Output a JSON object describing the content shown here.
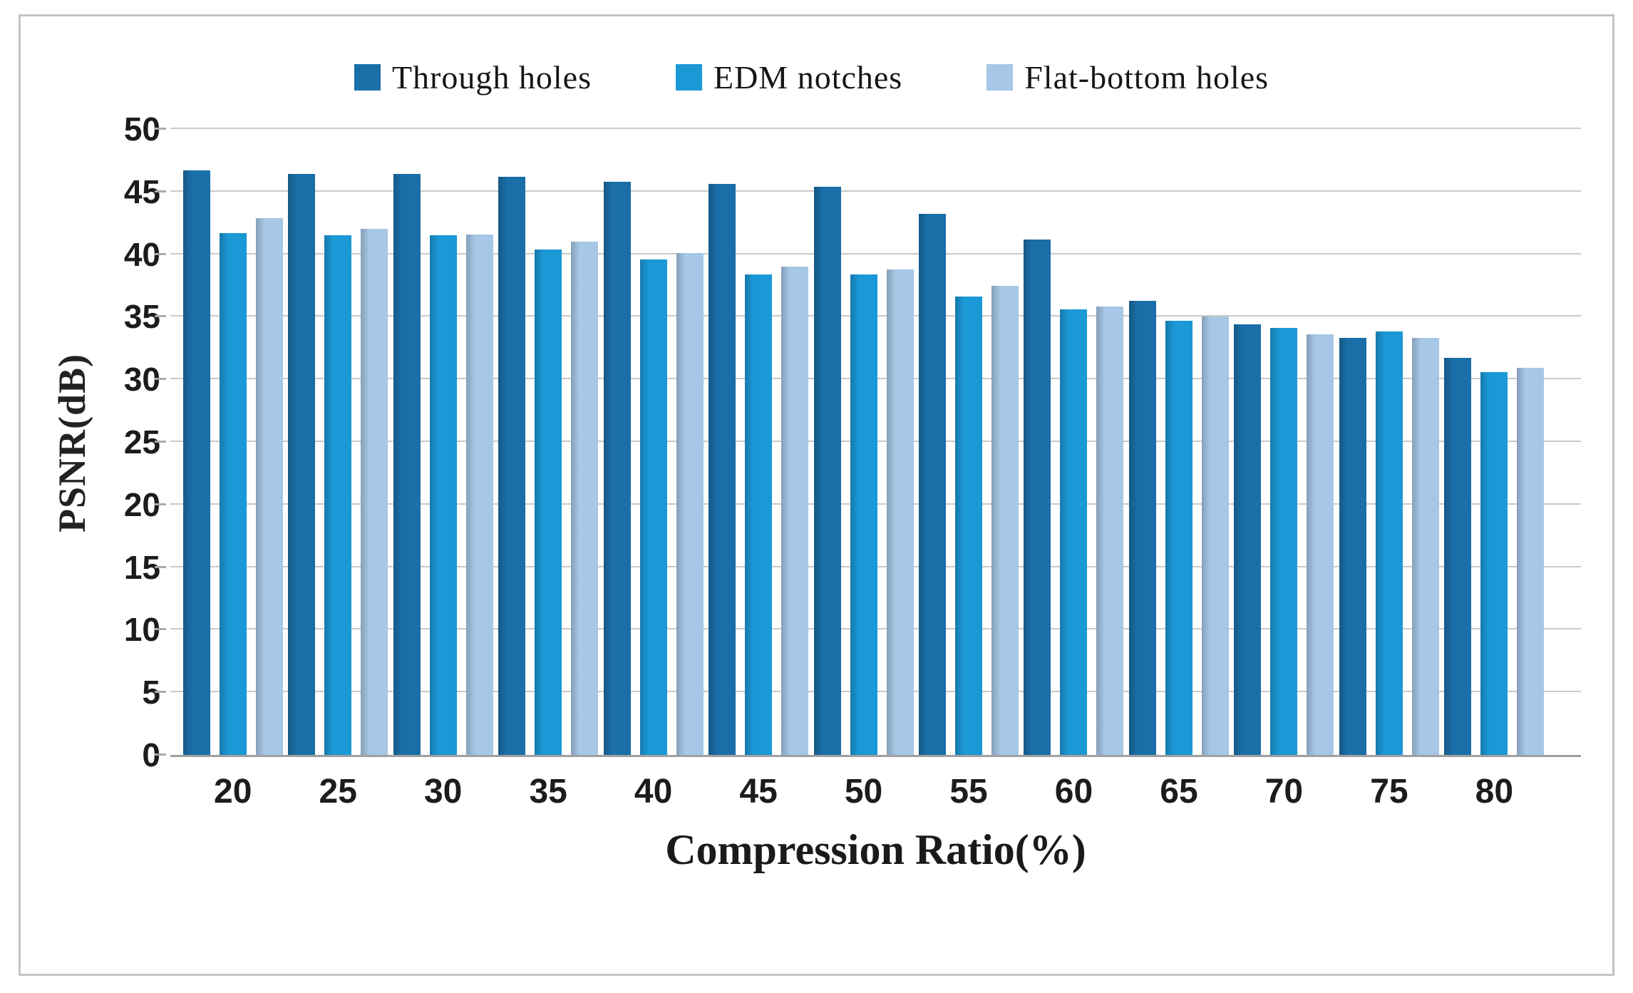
{
  "chart_data": {
    "type": "bar",
    "title": "",
    "xlabel": "Compression Ratio(%)",
    "ylabel": "PSNR(dB)",
    "categories": [
      "20",
      "25",
      "30",
      "35",
      "40",
      "45",
      "50",
      "55",
      "60",
      "65",
      "70",
      "75",
      "80"
    ],
    "series": [
      {
        "name": "Through holes",
        "color": "#1a6fa8",
        "values": [
          46.7,
          46.4,
          46.4,
          46.2,
          45.8,
          45.6,
          45.4,
          43.2,
          41.2,
          36.3,
          34.4,
          33.3,
          31.7
        ]
      },
      {
        "name": "EDM notches",
        "color": "#1b98d6",
        "values": [
          41.7,
          41.5,
          41.5,
          40.4,
          39.6,
          38.4,
          38.4,
          36.6,
          35.6,
          34.7,
          34.1,
          33.8,
          30.6
        ]
      },
      {
        "name": "Flat-bottom holes",
        "color": "#a6c7e6",
        "values": [
          42.9,
          42.0,
          41.6,
          41.0,
          40.1,
          39.0,
          38.8,
          37.5,
          35.8,
          35.0,
          33.6,
          33.3,
          30.9
        ]
      }
    ],
    "ylim": [
      0,
      50
    ],
    "yticks": [
      0,
      5,
      10,
      15,
      20,
      25,
      30,
      35,
      40,
      45,
      50
    ],
    "grid": "horizontal",
    "legend_position": "top"
  },
  "colors": {
    "gridline": "#cacaca",
    "axis_line": "#a0a0a0",
    "tick_text": "#1c1c1c",
    "frame_border": "#c4c4c4",
    "background": "#ffffff"
  }
}
